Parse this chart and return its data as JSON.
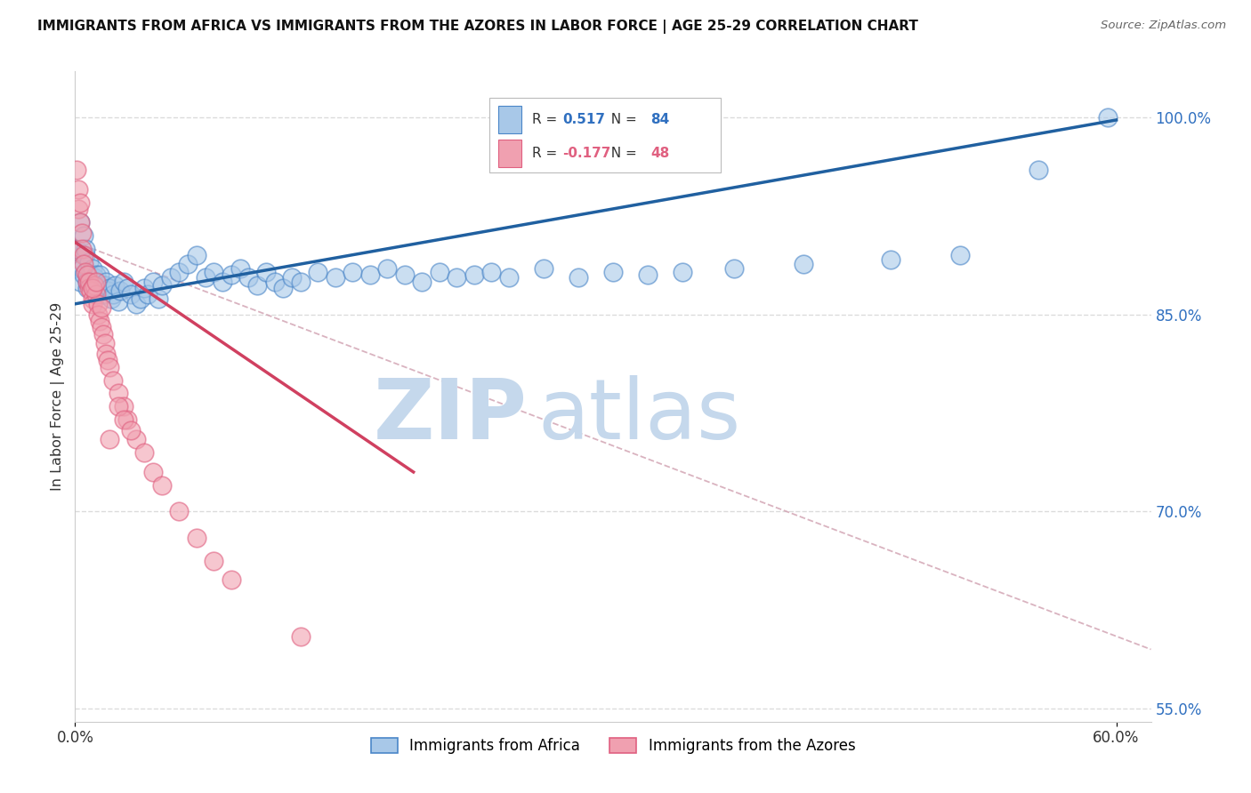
{
  "title": "IMMIGRANTS FROM AFRICA VS IMMIGRANTS FROM THE AZORES IN LABOR FORCE | AGE 25-29 CORRELATION CHART",
  "source": "Source: ZipAtlas.com",
  "ylabel": "In Labor Force | Age 25-29",
  "xlim": [
    0.0,
    0.62
  ],
  "ylim": [
    0.54,
    1.035
  ],
  "xtick_positions": [
    0.0,
    0.6
  ],
  "xticklabels": [
    "0.0%",
    "60.0%"
  ],
  "ytick_positions": [
    0.55,
    0.7,
    0.85,
    1.0
  ],
  "ytick_labels": [
    "55.0%",
    "70.0%",
    "85.0%",
    "100.0%"
  ],
  "legend1_label": "Immigrants from Africa",
  "legend2_label": "Immigrants from the Azores",
  "africa_R": "0.517",
  "africa_N": "84",
  "azores_R": "-0.177",
  "azores_N": "48",
  "africa_color": "#a8c8e8",
  "africa_edge_color": "#4a86c8",
  "azores_color": "#f0a0b0",
  "azores_edge_color": "#e06080",
  "africa_line_color": "#2060a0",
  "azores_line_color": "#d04060",
  "dashed_line_color": "#d0a0b0",
  "africa_trend_x": [
    0.0,
    0.6
  ],
  "africa_trend_y": [
    0.858,
    0.998
  ],
  "azores_trend_x": [
    0.0,
    0.195
  ],
  "azores_trend_y": [
    0.905,
    0.73
  ],
  "dashed_trend_x": [
    0.0,
    0.62
  ],
  "dashed_trend_y": [
    0.905,
    0.595
  ],
  "watermark_zip": "ZIP",
  "watermark_atlas": "atlas",
  "watermark_color": "#c5d8ec",
  "background_color": "#ffffff",
  "grid_color": "#d8d8d8",
  "africa_scatter_x": [
    0.001,
    0.002,
    0.003,
    0.003,
    0.004,
    0.005,
    0.005,
    0.006,
    0.006,
    0.007,
    0.007,
    0.008,
    0.008,
    0.009,
    0.009,
    0.01,
    0.01,
    0.011,
    0.011,
    0.012,
    0.012,
    0.013,
    0.013,
    0.014,
    0.015,
    0.016,
    0.017,
    0.018,
    0.019,
    0.02,
    0.021,
    0.022,
    0.023,
    0.025,
    0.026,
    0.028,
    0.03,
    0.032,
    0.035,
    0.038,
    0.04,
    0.042,
    0.045,
    0.048,
    0.05,
    0.055,
    0.06,
    0.065,
    0.07,
    0.075,
    0.08,
    0.085,
    0.09,
    0.095,
    0.1,
    0.105,
    0.11,
    0.115,
    0.12,
    0.125,
    0.13,
    0.14,
    0.15,
    0.16,
    0.17,
    0.18,
    0.19,
    0.2,
    0.21,
    0.22,
    0.23,
    0.24,
    0.25,
    0.27,
    0.29,
    0.31,
    0.33,
    0.35,
    0.38,
    0.42,
    0.47,
    0.51,
    0.555,
    0.595
  ],
  "africa_scatter_y": [
    0.9,
    0.885,
    0.92,
    0.875,
    0.885,
    0.91,
    0.88,
    0.895,
    0.9,
    0.87,
    0.875,
    0.88,
    0.89,
    0.875,
    0.88,
    0.872,
    0.885,
    0.878,
    0.87,
    0.875,
    0.88,
    0.868,
    0.874,
    0.88,
    0.87,
    0.865,
    0.872,
    0.875,
    0.868,
    0.87,
    0.862,
    0.865,
    0.872,
    0.86,
    0.868,
    0.875,
    0.87,
    0.865,
    0.858,
    0.862,
    0.87,
    0.865,
    0.875,
    0.862,
    0.872,
    0.878,
    0.882,
    0.888,
    0.895,
    0.878,
    0.882,
    0.875,
    0.88,
    0.885,
    0.878,
    0.872,
    0.882,
    0.875,
    0.87,
    0.878,
    0.875,
    0.882,
    0.878,
    0.882,
    0.88,
    0.885,
    0.88,
    0.875,
    0.882,
    0.878,
    0.88,
    0.882,
    0.878,
    0.885,
    0.878,
    0.882,
    0.88,
    0.882,
    0.885,
    0.888,
    0.892,
    0.895,
    0.96,
    1.0
  ],
  "azores_scatter_x": [
    0.001,
    0.002,
    0.002,
    0.003,
    0.003,
    0.004,
    0.004,
    0.005,
    0.005,
    0.006,
    0.007,
    0.007,
    0.008,
    0.008,
    0.009,
    0.01,
    0.01,
    0.011,
    0.012,
    0.013,
    0.013,
    0.014,
    0.015,
    0.016,
    0.017,
    0.018,
    0.019,
    0.02,
    0.022,
    0.025,
    0.028,
    0.03,
    0.035,
    0.04,
    0.045,
    0.05,
    0.06,
    0.07,
    0.08,
    0.09,
    0.02,
    0.025,
    0.028,
    0.032,
    0.01,
    0.012,
    0.015,
    0.13
  ],
  "azores_scatter_y": [
    0.96,
    0.945,
    0.93,
    0.935,
    0.92,
    0.912,
    0.9,
    0.895,
    0.888,
    0.882,
    0.875,
    0.88,
    0.87,
    0.875,
    0.868,
    0.862,
    0.858,
    0.872,
    0.865,
    0.858,
    0.85,
    0.845,
    0.84,
    0.835,
    0.828,
    0.82,
    0.815,
    0.81,
    0.8,
    0.79,
    0.78,
    0.77,
    0.755,
    0.745,
    0.73,
    0.72,
    0.7,
    0.68,
    0.662,
    0.648,
    0.755,
    0.78,
    0.77,
    0.762,
    0.87,
    0.875,
    0.855,
    0.605
  ]
}
